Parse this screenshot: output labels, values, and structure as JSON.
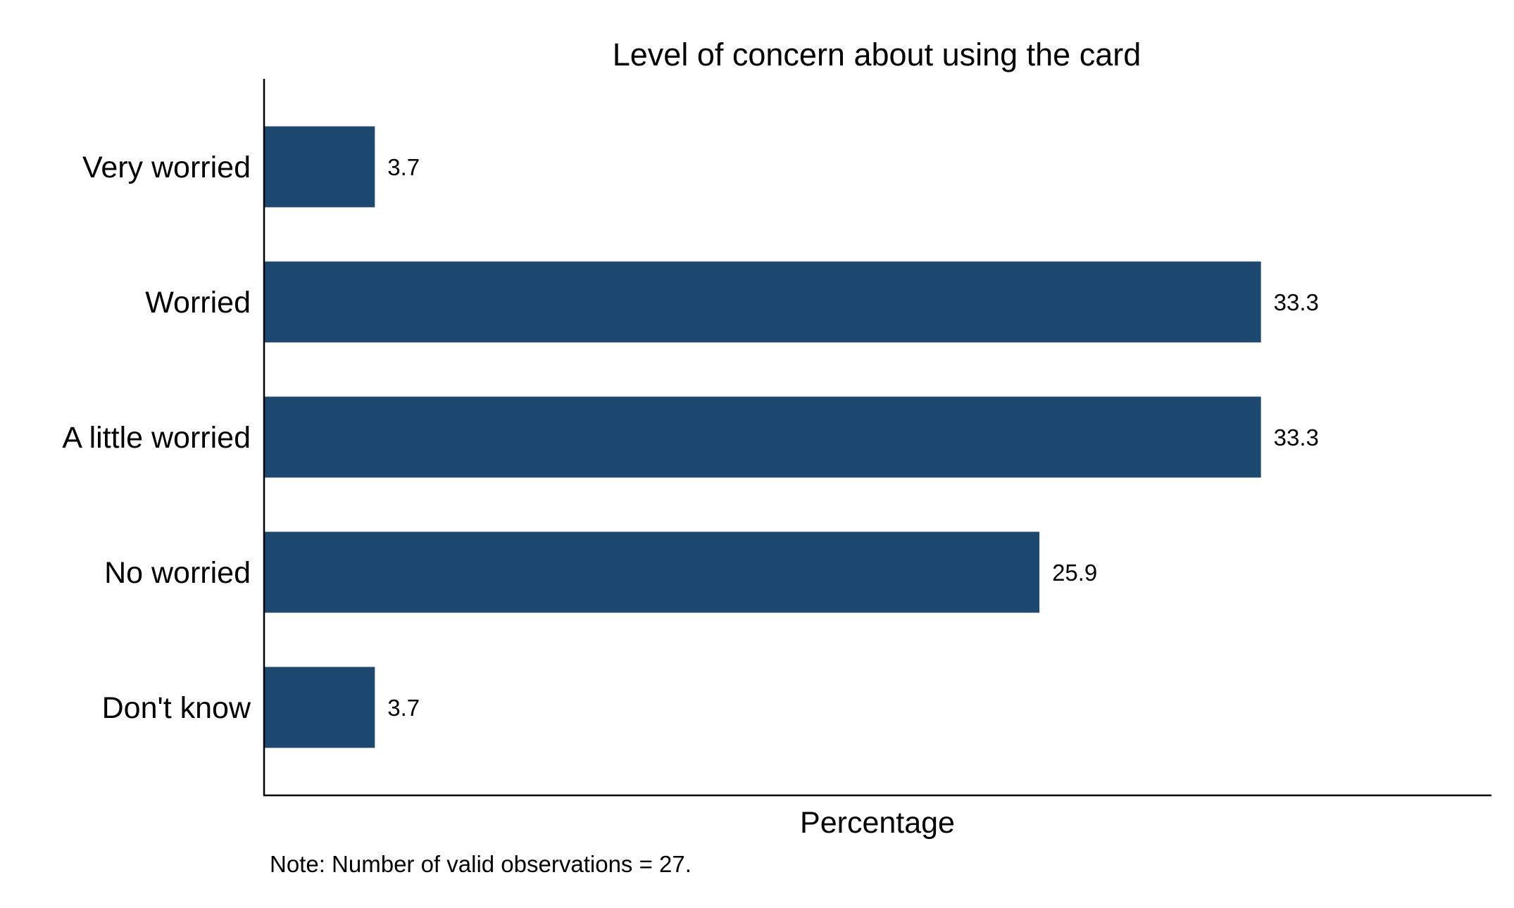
{
  "chart_data": {
    "type": "bar",
    "orientation": "horizontal",
    "title": "Level of concern about using the card",
    "categories": [
      "Very worried",
      "Worried",
      "A little worried",
      "No worried",
      "Don't know"
    ],
    "values": [
      3.7,
      33.3,
      33.3,
      25.9,
      3.7
    ],
    "value_labels": [
      "3.7",
      "33.3",
      "33.3",
      "25.9",
      "3.7"
    ],
    "xlabel": "Percentage",
    "ylabel": "",
    "xlim": [
      0,
      41
    ],
    "grid": false,
    "bar_color": "#1d4870",
    "note": "Note: Number of valid observations = 27."
  }
}
